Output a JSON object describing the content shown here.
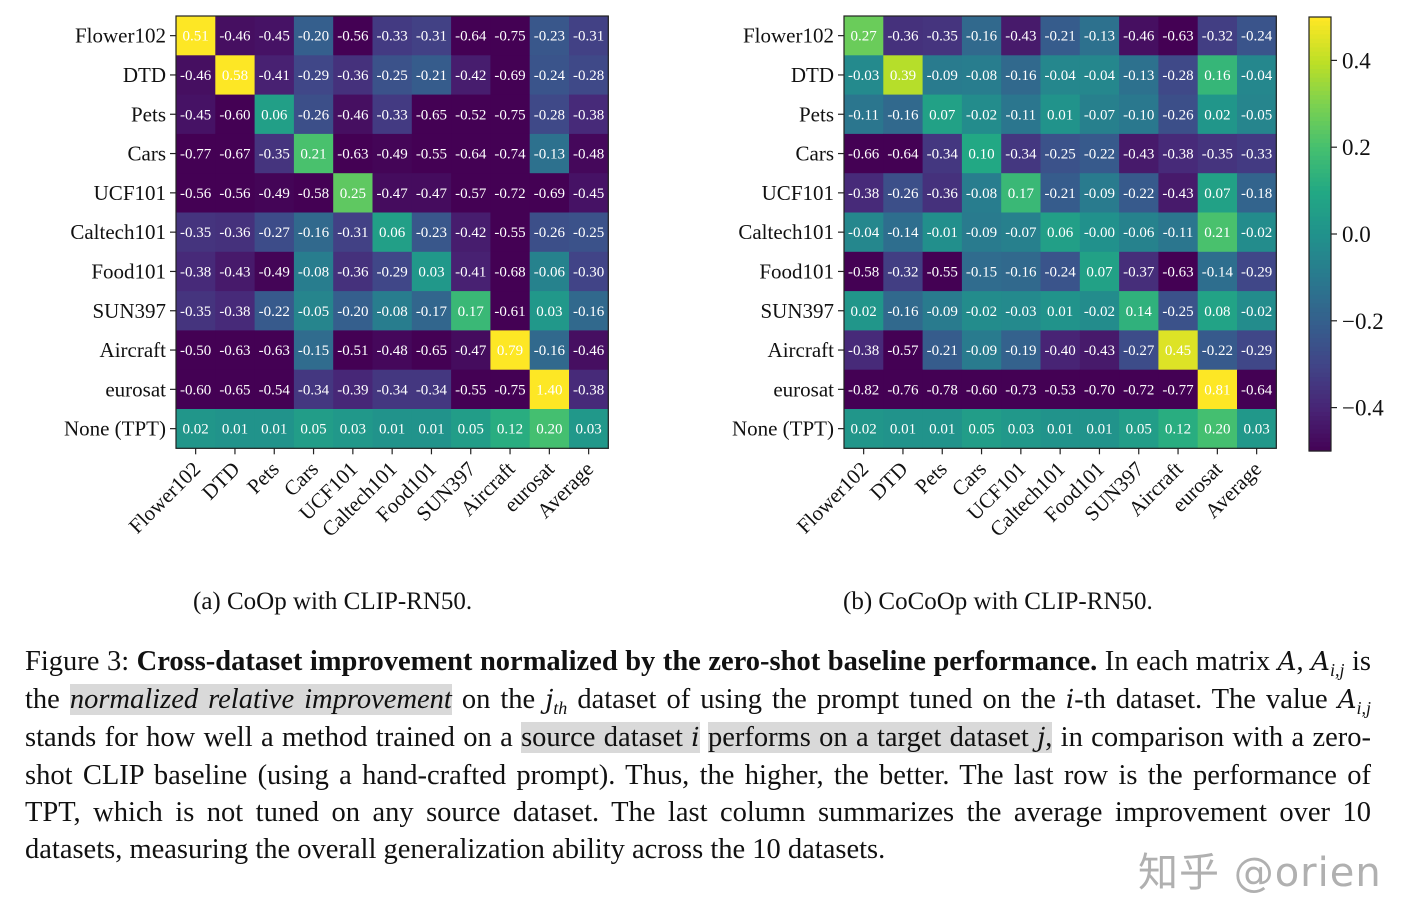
{
  "chart_data": [
    {
      "type": "heatmap",
      "title": "(a) CoOp with CLIP-RN50.",
      "xlabel": "",
      "ylabel": "",
      "row_labels": [
        "Flower102",
        "DTD",
        "Pets",
        "Cars",
        "UCF101",
        "Caltech101",
        "Food101",
        "SUN397",
        "Aircraft",
        "eurosat",
        "None (TPT)"
      ],
      "col_labels": [
        "Flower102",
        "DTD",
        "Pets",
        "Cars",
        "UCF101",
        "Caltech101",
        "Food101",
        "SUN397",
        "Aircraft",
        "eurosat",
        "Average"
      ],
      "color_range": [
        -0.5,
        0.5
      ],
      "colormap": "viridis",
      "values": [
        [
          "0.51",
          "-0.46",
          "-0.45",
          "-0.20",
          "-0.56",
          "-0.33",
          "-0.31",
          "-0.64",
          "-0.75",
          "-0.23",
          "-0.31"
        ],
        [
          "-0.46",
          "0.58",
          "-0.41",
          "-0.29",
          "-0.36",
          "-0.25",
          "-0.21",
          "-0.42",
          "-0.69",
          "-0.24",
          "-0.28"
        ],
        [
          "-0.45",
          "-0.60",
          "0.06",
          "-0.26",
          "-0.46",
          "-0.33",
          "-0.65",
          "-0.52",
          "-0.75",
          "-0.28",
          "-0.38"
        ],
        [
          "-0.77",
          "-0.67",
          "-0.35",
          "0.21",
          "-0.63",
          "-0.49",
          "-0.55",
          "-0.64",
          "-0.74",
          "-0.13",
          "-0.48"
        ],
        [
          "-0.56",
          "-0.56",
          "-0.49",
          "-0.58",
          "0.25",
          "-0.47",
          "-0.47",
          "-0.57",
          "-0.72",
          "-0.69",
          "-0.45"
        ],
        [
          "-0.35",
          "-0.36",
          "-0.27",
          "-0.16",
          "-0.31",
          "0.06",
          "-0.23",
          "-0.42",
          "-0.55",
          "-0.26",
          "-0.25"
        ],
        [
          "-0.38",
          "-0.43",
          "-0.49",
          "-0.08",
          "-0.36",
          "-0.29",
          "0.03",
          "-0.41",
          "-0.68",
          "-0.06",
          "-0.30"
        ],
        [
          "-0.35",
          "-0.38",
          "-0.22",
          "-0.05",
          "-0.20",
          "-0.08",
          "-0.17",
          "0.17",
          "-0.61",
          "0.03",
          "-0.16"
        ],
        [
          "-0.50",
          "-0.63",
          "-0.63",
          "-0.15",
          "-0.51",
          "-0.48",
          "-0.65",
          "-0.47",
          "0.79",
          "-0.16",
          "-0.46"
        ],
        [
          "-0.60",
          "-0.65",
          "-0.54",
          "-0.34",
          "-0.39",
          "-0.34",
          "-0.34",
          "-0.55",
          "-0.75",
          "1.40",
          "-0.38"
        ],
        [
          "0.02",
          "0.01",
          "0.01",
          "0.05",
          "0.03",
          "0.01",
          "0.01",
          "0.05",
          "0.12",
          "0.20",
          "0.03"
        ]
      ]
    },
    {
      "type": "heatmap",
      "title": "(b) CoCoOp with CLIP-RN50.",
      "xlabel": "",
      "ylabel": "",
      "row_labels": [
        "Flower102",
        "DTD",
        "Pets",
        "Cars",
        "UCF101",
        "Caltech101",
        "Food101",
        "SUN397",
        "Aircraft",
        "eurosat",
        "None (TPT)"
      ],
      "col_labels": [
        "Flower102",
        "DTD",
        "Pets",
        "Cars",
        "UCF101",
        "Caltech101",
        "Food101",
        "SUN397",
        "Aircraft",
        "eurosat",
        "Average"
      ],
      "color_range": [
        -0.5,
        0.5
      ],
      "colormap": "viridis",
      "colorbar": {
        "ticks": [
          0.4,
          0.2,
          0.0,
          -0.2,
          -0.4
        ],
        "tick_labels": [
          "0.4",
          "0.2",
          "0.0",
          "−0.2",
          "−0.4"
        ]
      },
      "values": [
        [
          "0.27",
          "-0.36",
          "-0.35",
          "-0.16",
          "-0.43",
          "-0.21",
          "-0.13",
          "-0.46",
          "-0.63",
          "-0.32",
          "-0.24"
        ],
        [
          "-0.03",
          "0.39",
          "-0.09",
          "-0.08",
          "-0.16",
          "-0.04",
          "-0.04",
          "-0.13",
          "-0.28",
          "0.16",
          "-0.04"
        ],
        [
          "-0.11",
          "-0.16",
          "0.07",
          "-0.02",
          "-0.11",
          "0.01",
          "-0.07",
          "-0.10",
          "-0.26",
          "0.02",
          "-0.05"
        ],
        [
          "-0.66",
          "-0.64",
          "-0.34",
          "0.10",
          "-0.34",
          "-0.25",
          "-0.22",
          "-0.43",
          "-0.38",
          "-0.35",
          "-0.33"
        ],
        [
          "-0.38",
          "-0.26",
          "-0.36",
          "-0.08",
          "0.17",
          "-0.21",
          "-0.09",
          "-0.22",
          "-0.43",
          "0.07",
          "-0.18"
        ],
        [
          "-0.04",
          "-0.14",
          "-0.01",
          "-0.09",
          "-0.07",
          "0.06",
          "-0.00",
          "-0.06",
          "-0.11",
          "0.21",
          "-0.02"
        ],
        [
          "-0.58",
          "-0.32",
          "-0.55",
          "-0.15",
          "-0.16",
          "-0.24",
          "0.07",
          "-0.37",
          "-0.63",
          "-0.14",
          "-0.29"
        ],
        [
          "0.02",
          "-0.16",
          "-0.09",
          "-0.02",
          "-0.03",
          "0.01",
          "-0.02",
          "0.14",
          "-0.25",
          "0.08",
          "-0.02"
        ],
        [
          "-0.38",
          "-0.57",
          "-0.21",
          "-0.09",
          "-0.19",
          "-0.40",
          "-0.43",
          "-0.27",
          "0.45",
          "-0.22",
          "-0.29"
        ],
        [
          "-0.82",
          "-0.76",
          "-0.78",
          "-0.60",
          "-0.73",
          "-0.53",
          "-0.70",
          "-0.72",
          "-0.77",
          "0.81",
          "-0.64"
        ],
        [
          "0.02",
          "0.01",
          "0.01",
          "0.05",
          "0.03",
          "0.01",
          "0.01",
          "0.05",
          "0.12",
          "0.20",
          "0.03"
        ]
      ]
    }
  ],
  "subcaptions": {
    "a": "(a) CoOp with CLIP-RN50.",
    "b": "(b) CoCoOp with CLIP-RN50."
  },
  "caption": {
    "label": "Figure 3: ",
    "bold": "Cross-dataset improvement normalized by the zero-shot baseline performance.",
    "t1": " In each matrix ",
    "m_A": "A",
    "t2": ", ",
    "m_Aij": "A",
    "sub_ij": "i,j",
    "t3": " is the ",
    "hl_italic": "normalized relative improvement",
    "t4": " on the ",
    "m_j": "j",
    "sub_th": "th",
    "t5": " dataset of using the prompt tuned on the ",
    "m_i": "i",
    "t6": "-th dataset. The value ",
    "m_Aij2": "A",
    "sub_ij2": "i,j",
    "t7": " stands for how well a method trained on a ",
    "hl1": "source dataset ",
    "hl1_m": "i",
    "hl2": "performs on a target dataset ",
    "hl2_m": "j",
    "hl2_end": ",",
    "t8": " in comparison with a zero-shot CLIP baseline (using a hand-crafted prompt). Thus, the higher, the better. The last row is the performance of TPT, which is not tuned on any source dataset. The last column summarizes the average improvement over 10 datasets, measuring the overall generalization ability across the 10 datasets."
  },
  "watermark": "知乎 @orien"
}
